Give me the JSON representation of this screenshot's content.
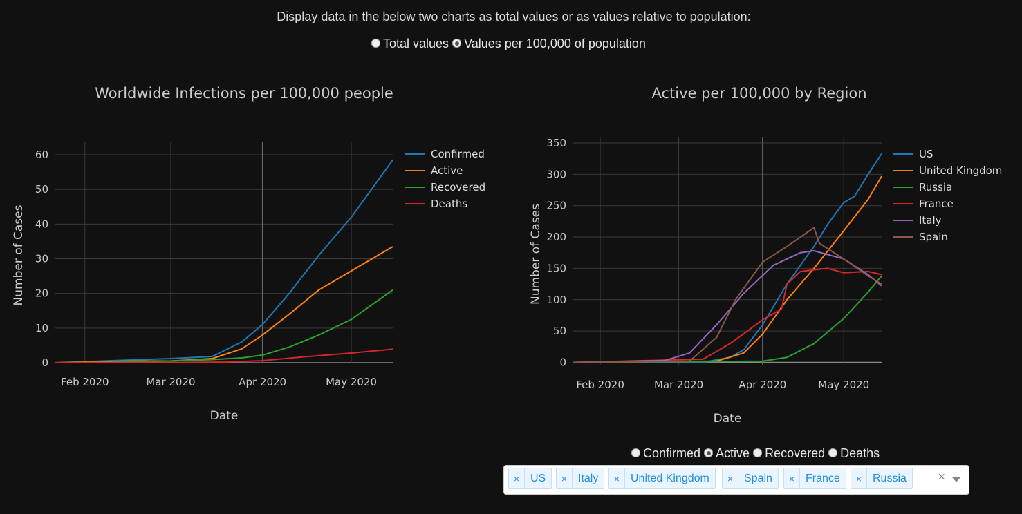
{
  "intro": "Display data in the below two charts as total values or as values relative to population:",
  "mode_radio": {
    "options": [
      "Total values",
      "Values per 100,000 of population"
    ],
    "selected": 1
  },
  "left_chart": {
    "title": "Worldwide Infections per 100,000 people",
    "xlabel": "Date",
    "ylabel": "Number of Cases"
  },
  "right_chart": {
    "title": "Active per 100,000 by Region",
    "xlabel": "Date",
    "ylabel": "Number of Cases"
  },
  "metric_radio": {
    "options": [
      "Confirmed",
      "Active",
      "Recovered",
      "Deaths"
    ],
    "selected": 1
  },
  "countries_dropdown": {
    "selected": [
      "US",
      "Italy",
      "United Kingdom",
      "Spain",
      "France",
      "Russia"
    ],
    "clear_icon": "×",
    "remove_icon": "×"
  },
  "colors": {
    "background": "#111111",
    "grid": "#3a3a3a",
    "blue": "#1f77b4",
    "orange": "#ff7f0e",
    "green": "#2ca02c",
    "red": "#d62728",
    "purple": "#9467bd",
    "brown": "#8c564b",
    "chip_text": "#1f8fe0"
  },
  "chart_data": [
    {
      "type": "line",
      "title": "Worldwide Infections per 100,000 people",
      "xlabel": "Date",
      "ylabel": "Number of Cases",
      "x_range": [
        "2020-01-22",
        "2020-05-15"
      ],
      "xticks": [
        {
          "date": "2020-02-01",
          "label": "Feb 2020"
        },
        {
          "date": "2020-03-01",
          "label": "Mar 2020"
        },
        {
          "date": "2020-04-01",
          "label": "Apr 2020"
        },
        {
          "date": "2020-05-01",
          "label": "May 2020"
        }
      ],
      "ylim": [
        0,
        62
      ],
      "yticks": [
        0,
        10,
        20,
        30,
        40,
        50,
        60
      ],
      "legend_position": "right",
      "series": [
        {
          "name": "Confirmed",
          "color": "#1f77b4",
          "points": [
            [
              "2020-01-22",
              0
            ],
            [
              "2020-02-10",
              0.6
            ],
            [
              "2020-03-01",
              1.2
            ],
            [
              "2020-03-15",
              1.8
            ],
            [
              "2020-03-25",
              6
            ],
            [
              "2020-04-01",
              11
            ],
            [
              "2020-04-10",
              20
            ],
            [
              "2020-04-20",
              31
            ],
            [
              "2020-05-01",
              42
            ],
            [
              "2020-05-15",
              58.5
            ]
          ]
        },
        {
          "name": "Active",
          "color": "#ff7f0e",
          "points": [
            [
              "2020-01-22",
              0
            ],
            [
              "2020-02-10",
              0.4
            ],
            [
              "2020-02-20",
              0.5
            ],
            [
              "2020-03-01",
              0.5
            ],
            [
              "2020-03-15",
              1.2
            ],
            [
              "2020-03-25",
              4
            ],
            [
              "2020-04-01",
              8
            ],
            [
              "2020-04-10",
              14
            ],
            [
              "2020-04-20",
              21
            ],
            [
              "2020-05-01",
              26.5
            ],
            [
              "2020-05-15",
              33.5
            ]
          ]
        },
        {
          "name": "Recovered",
          "color": "#2ca02c",
          "points": [
            [
              "2020-01-22",
              0
            ],
            [
              "2020-02-10",
              0.1
            ],
            [
              "2020-03-01",
              0.5
            ],
            [
              "2020-03-15",
              0.9
            ],
            [
              "2020-03-25",
              1.4
            ],
            [
              "2020-04-01",
              2.2
            ],
            [
              "2020-04-10",
              4.5
            ],
            [
              "2020-04-20",
              8
            ],
            [
              "2020-05-01",
              12.5
            ],
            [
              "2020-05-15",
              21
            ]
          ]
        },
        {
          "name": "Deaths",
          "color": "#d62728",
          "points": [
            [
              "2020-01-22",
              0
            ],
            [
              "2020-03-01",
              0.05
            ],
            [
              "2020-03-20",
              0.2
            ],
            [
              "2020-04-01",
              0.6
            ],
            [
              "2020-04-15",
              1.7
            ],
            [
              "2020-05-01",
              2.8
            ],
            [
              "2020-05-15",
              3.9
            ]
          ]
        }
      ]
    },
    {
      "type": "line",
      "title": "Active per 100,000 by Region",
      "xlabel": "Date",
      "ylabel": "Number of Cases",
      "x_range": [
        "2020-01-22",
        "2020-05-15"
      ],
      "xticks": [
        {
          "date": "2020-02-01",
          "label": "Feb 2020"
        },
        {
          "date": "2020-03-01",
          "label": "Mar 2020"
        },
        {
          "date": "2020-04-01",
          "label": "Apr 2020"
        },
        {
          "date": "2020-05-01",
          "label": "May 2020"
        }
      ],
      "ylim": [
        -5,
        350
      ],
      "yticks": [
        0,
        50,
        100,
        150,
        200,
        250,
        300,
        350
      ],
      "legend_position": "right",
      "series": [
        {
          "name": "US",
          "color": "#1f77b4",
          "points": [
            [
              "2020-01-22",
              0
            ],
            [
              "2020-03-10",
              0
            ],
            [
              "2020-03-20",
              8
            ],
            [
              "2020-03-25",
              20
            ],
            [
              "2020-04-01",
              60
            ],
            [
              "2020-04-10",
              125
            ],
            [
              "2020-04-20",
              185
            ],
            [
              "2020-04-25",
              220
            ],
            [
              "2020-05-01",
              255
            ],
            [
              "2020-05-05",
              265
            ],
            [
              "2020-05-10",
              300
            ],
            [
              "2020-05-15",
              333
            ]
          ]
        },
        {
          "name": "United Kingdom",
          "color": "#ff7f0e",
          "points": [
            [
              "2020-01-22",
              0
            ],
            [
              "2020-03-15",
              2
            ],
            [
              "2020-03-25",
              15
            ],
            [
              "2020-04-01",
              45
            ],
            [
              "2020-04-10",
              100
            ],
            [
              "2020-04-20",
              150
            ],
            [
              "2020-05-01",
              210
            ],
            [
              "2020-05-10",
              260
            ],
            [
              "2020-05-15",
              297
            ]
          ]
        },
        {
          "name": "Russia",
          "color": "#2ca02c",
          "points": [
            [
              "2020-01-22",
              0
            ],
            [
              "2020-04-01",
              2
            ],
            [
              "2020-04-10",
              8
            ],
            [
              "2020-04-20",
              30
            ],
            [
              "2020-05-01",
              70
            ],
            [
              "2020-05-10",
              112
            ],
            [
              "2020-05-15",
              138
            ]
          ]
        },
        {
          "name": "France",
          "color": "#d62728",
          "points": [
            [
              "2020-01-22",
              0
            ],
            [
              "2020-03-10",
              5
            ],
            [
              "2020-03-20",
              30
            ],
            [
              "2020-03-28",
              55
            ],
            [
              "2020-04-01",
              68
            ],
            [
              "2020-04-08",
              85
            ],
            [
              "2020-04-10",
              125
            ],
            [
              "2020-04-15",
              145
            ],
            [
              "2020-04-25",
              150
            ],
            [
              "2020-05-01",
              143
            ],
            [
              "2020-05-10",
              145
            ],
            [
              "2020-05-15",
              140
            ]
          ]
        },
        {
          "name": "Italy",
          "color": "#9467bd",
          "points": [
            [
              "2020-01-22",
              0
            ],
            [
              "2020-02-25",
              3
            ],
            [
              "2020-03-05",
              15
            ],
            [
              "2020-03-15",
              60
            ],
            [
              "2020-03-25",
              110
            ],
            [
              "2020-04-05",
              155
            ],
            [
              "2020-04-15",
              175
            ],
            [
              "2020-04-20",
              178
            ],
            [
              "2020-05-01",
              165
            ],
            [
              "2020-05-10",
              140
            ],
            [
              "2020-05-15",
              122
            ]
          ]
        },
        {
          "name": "Spain",
          "color": "#8c564b",
          "points": [
            [
              "2020-01-22",
              0
            ],
            [
              "2020-03-05",
              2
            ],
            [
              "2020-03-15",
              40
            ],
            [
              "2020-03-22",
              100
            ],
            [
              "2020-04-01",
              160
            ],
            [
              "2020-04-10",
              185
            ],
            [
              "2020-04-20",
              215
            ],
            [
              "2020-04-22",
              190
            ],
            [
              "2020-05-01",
              165
            ],
            [
              "2020-05-10",
              138
            ],
            [
              "2020-05-15",
              125
            ]
          ]
        }
      ]
    }
  ]
}
